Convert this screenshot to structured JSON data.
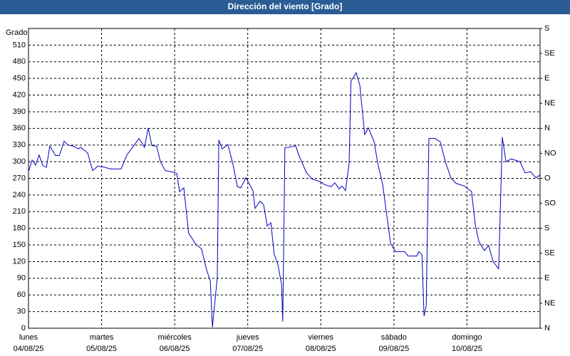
{
  "chart_data": {
    "type": "line",
    "title": "Dirección del viento [Grado]",
    "y_label": "Grado",
    "xlim": [
      0,
      168
    ],
    "xticks": [
      {
        "value": 0,
        "label": "lunes",
        "date": "04/08/25"
      },
      {
        "value": 24,
        "label": "martes",
        "date": "05/08/25"
      },
      {
        "value": 48,
        "label": "miércoles",
        "date": "06/08/25"
      },
      {
        "value": 72,
        "label": "jueves",
        "date": "07/08/25"
      },
      {
        "value": 96,
        "label": "viernes",
        "date": "08/08/25"
      },
      {
        "value": 120,
        "label": "sábado",
        "date": "09/08/25"
      },
      {
        "value": 144,
        "label": "domingo",
        "date": "10/08/25"
      }
    ],
    "ylim": [
      0,
      540
    ],
    "yticks": [
      0,
      30,
      60,
      90,
      120,
      150,
      180,
      210,
      240,
      270,
      300,
      330,
      360,
      390,
      420,
      450,
      480,
      510
    ],
    "y2lim": [
      0,
      540
    ],
    "y2ticks": [
      {
        "value": 0,
        "label": "N"
      },
      {
        "value": 45,
        "label": "NE"
      },
      {
        "value": 90,
        "label": "E"
      },
      {
        "value": 135,
        "label": "SE"
      },
      {
        "value": 180,
        "label": "S"
      },
      {
        "value": 225,
        "label": "SO"
      },
      {
        "value": 270,
        "label": "O"
      },
      {
        "value": 315,
        "label": "NO"
      },
      {
        "value": 360,
        "label": "N"
      },
      {
        "value": 405,
        "label": "NE"
      },
      {
        "value": 450,
        "label": "E"
      },
      {
        "value": 495,
        "label": "SE"
      },
      {
        "value": 540,
        "label": "S"
      }
    ],
    "grid": true,
    "series": [
      {
        "color": "#0000c0",
        "x": [
          0,
          1.2,
          2.3,
          3.5,
          4.7,
          5.9,
          7.0,
          8.9,
          10.1,
          11.7,
          13.0,
          14.7,
          16.4,
          17.1,
          19.4,
          21.1,
          22.7,
          25.0,
          26.9,
          30.4,
          32.3,
          34.2,
          36.3,
          38.1,
          39.3,
          40.5,
          42.1,
          43.3,
          44.9,
          46.8,
          48.7,
          49.6,
          51.0,
          52.6,
          55.0,
          56.8,
          58.5,
          59.7,
          60.4,
          62.0,
          62.5,
          63.6,
          65.5,
          67.2,
          68.6,
          69.7,
          71.4,
          73.7,
          74.4,
          76.0,
          77.2,
          78.4,
          79.6,
          80.7,
          81.9,
          83.1,
          83.5,
          84.2,
          86.6,
          87.7,
          88.9,
          91.3,
          93.1,
          95.9,
          97.1,
          99.4,
          100.6,
          102.0,
          103.0,
          104.1,
          105.3,
          105.9,
          107.6,
          108.8,
          110.4,
          111.6,
          113.5,
          114.7,
          116.3,
          118.9,
          120.5,
          123.5,
          124.7,
          127.5,
          128.2,
          129.2,
          129.9,
          130.6,
          131.5,
          133.4,
          135.2,
          136.9,
          138.7,
          140.4,
          143.2,
          145.5,
          146.7,
          147.9,
          149.7,
          151.1,
          152.6,
          154.4,
          155.6,
          156.8,
          158.6,
          161.4,
          163.1,
          164.9,
          166.6,
          168
        ],
        "values": [
          282,
          303,
          294,
          312,
          293,
          290,
          328,
          311,
          311,
          337,
          330,
          328,
          323,
          326,
          316,
          284,
          292,
          290,
          287,
          287,
          312,
          326,
          342,
          326,
          361,
          329,
          328,
          300,
          284,
          282,
          279,
          246,
          253,
          171,
          151,
          143,
          105,
          85,
          2,
          92,
          339,
          323,
          331,
          294,
          255,
          253,
          271,
          248,
          216,
          229,
          223,
          184,
          190,
          133,
          115,
          79,
          12,
          325,
          327,
          329,
          310,
          280,
          269,
          264,
          259,
          255,
          262,
          251,
          256,
          248,
          297,
          445,
          460,
          438,
          349,
          361,
          336,
          297,
          259,
          153,
          138,
          138,
          130,
          130,
          138,
          133,
          22,
          40,
          342,
          342,
          336,
          300,
          271,
          261,
          256,
          246,
          188,
          156,
          140,
          149,
          120,
          107,
          344,
          300,
          305,
          300,
          280,
          282,
          271,
          276
        ]
      }
    ]
  }
}
